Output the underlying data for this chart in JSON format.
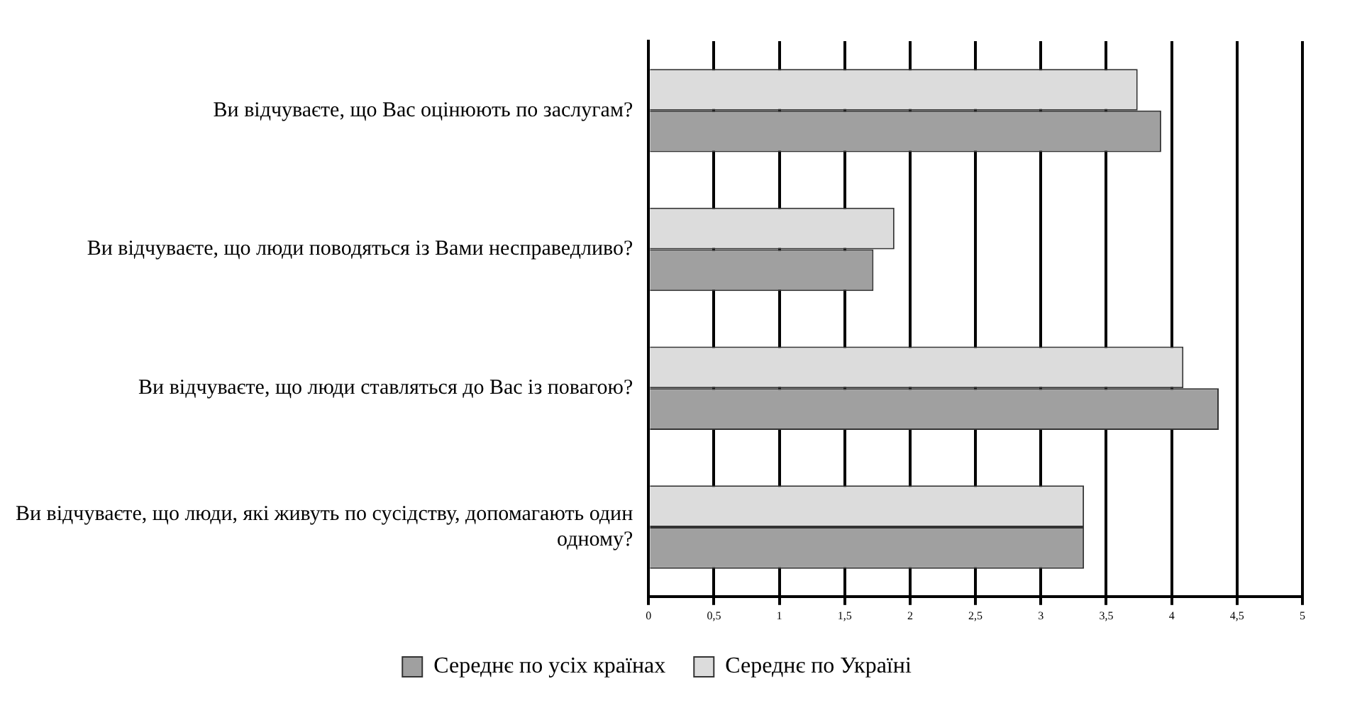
{
  "chart_data": {
    "type": "bar",
    "orientation": "horizontal",
    "categories": [
      "Ви відчуваєте, що Вас оцінюють по заслугам?",
      "Ви відчуваєте, що люди поводяться із Вами несправедливо?",
      "Ви відчуваєте, що люди ставляться до Вас із повагою?",
      "Ви відчуваєте, що люди, які живуть по сусідству, допомагають один одному?"
    ],
    "series": [
      {
        "name": "Середнє по Україні",
        "color": "#dcdcdc",
        "values": [
          3.74,
          1.88,
          4.09,
          3.33
        ]
      },
      {
        "name": "Середнє по усіх країнах",
        "color": "#a0a0a0",
        "values": [
          3.92,
          1.72,
          4.36,
          3.33
        ]
      }
    ],
    "xlim": [
      0,
      5
    ],
    "xticks": [
      0,
      {
        "value": 0.5,
        "label": "0,5"
      },
      1,
      {
        "value": 1.5,
        "label": "1,5"
      },
      2,
      {
        "value": 2.5,
        "label": "2,5"
      },
      3,
      {
        "value": 3.5,
        "label": "3,5"
      },
      4,
      {
        "value": 4.5,
        "label": "4,5"
      },
      5
    ],
    "grid": "x",
    "legend": "bottom"
  }
}
